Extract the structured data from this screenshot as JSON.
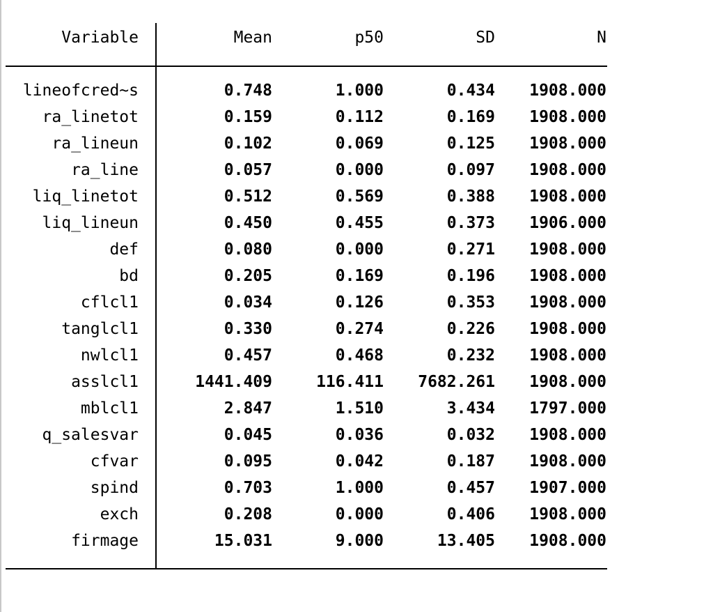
{
  "table": {
    "headers": [
      "Variable",
      "Mean",
      "p50",
      "SD",
      "N"
    ],
    "rows": [
      {
        "variable": "lineofcred~s",
        "mean": "0.748",
        "p50": "1.000",
        "sd": "0.434",
        "n": "1908.000"
      },
      {
        "variable": "ra_linetot",
        "mean": "0.159",
        "p50": "0.112",
        "sd": "0.169",
        "n": "1908.000"
      },
      {
        "variable": "ra_lineun",
        "mean": "0.102",
        "p50": "0.069",
        "sd": "0.125",
        "n": "1908.000"
      },
      {
        "variable": "ra_line",
        "mean": "0.057",
        "p50": "0.000",
        "sd": "0.097",
        "n": "1908.000"
      },
      {
        "variable": "liq_linetot",
        "mean": "0.512",
        "p50": "0.569",
        "sd": "0.388",
        "n": "1908.000"
      },
      {
        "variable": "liq_lineun",
        "mean": "0.450",
        "p50": "0.455",
        "sd": "0.373",
        "n": "1906.000"
      },
      {
        "variable": "def",
        "mean": "0.080",
        "p50": "0.000",
        "sd": "0.271",
        "n": "1908.000"
      },
      {
        "variable": "bd",
        "mean": "0.205",
        "p50": "0.169",
        "sd": "0.196",
        "n": "1908.000"
      },
      {
        "variable": "cflcl1",
        "mean": "0.034",
        "p50": "0.126",
        "sd": "0.353",
        "n": "1908.000"
      },
      {
        "variable": "tanglcl1",
        "mean": "0.330",
        "p50": "0.274",
        "sd": "0.226",
        "n": "1908.000"
      },
      {
        "variable": "nwlcl1",
        "mean": "0.457",
        "p50": "0.468",
        "sd": "0.232",
        "n": "1908.000"
      },
      {
        "variable": "asslcl1",
        "mean": "1441.409",
        "p50": "116.411",
        "sd": "7682.261",
        "n": "1908.000"
      },
      {
        "variable": "mblcl1",
        "mean": "2.847",
        "p50": "1.510",
        "sd": "3.434",
        "n": "1797.000"
      },
      {
        "variable": "q_salesvar",
        "mean": "0.045",
        "p50": "0.036",
        "sd": "0.032",
        "n": "1908.000"
      },
      {
        "variable": "cfvar",
        "mean": "0.095",
        "p50": "0.042",
        "sd": "0.187",
        "n": "1908.000"
      },
      {
        "variable": "spind",
        "mean": "0.703",
        "p50": "1.000",
        "sd": "0.457",
        "n": "1907.000"
      },
      {
        "variable": "exch",
        "mean": "0.208",
        "p50": "0.000",
        "sd": "0.406",
        "n": "1908.000"
      },
      {
        "variable": "firmage",
        "mean": "15.031",
        "p50": "9.000",
        "sd": "13.405",
        "n": "1908.000"
      }
    ]
  }
}
